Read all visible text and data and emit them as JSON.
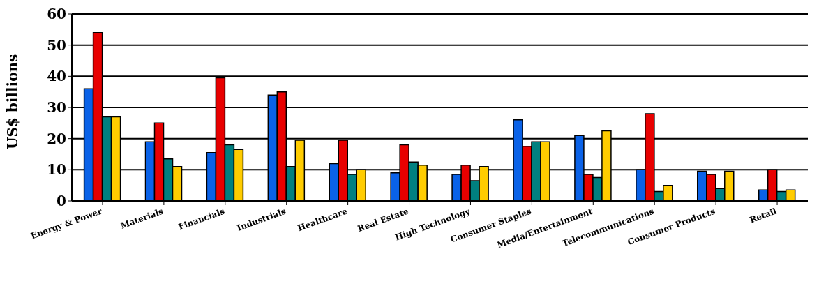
{
  "chart_data": {
    "type": "bar",
    "ylabel": "US$ billions",
    "categories": [
      "Energy & Power",
      "Materials",
      "Financials",
      "Industrials",
      "Healthcare",
      "Real Estate",
      "High Technology",
      "Consumer Staples",
      "Media/Entertainment",
      "Telecommunications",
      "Consumer Products",
      "Retail"
    ],
    "series": [
      {
        "color": "#0a62e8",
        "values": [
          36,
          19,
          15.5,
          34,
          12,
          9,
          8.5,
          26,
          21,
          10,
          9.5,
          3.5
        ]
      },
      {
        "color": "#e80000",
        "values": [
          54,
          25,
          39.5,
          35,
          19.5,
          18,
          11.5,
          17.5,
          8.5,
          28,
          8.5,
          10
        ]
      },
      {
        "color": "#008080",
        "values": [
          27,
          13.5,
          18,
          11,
          8.5,
          12.5,
          6.5,
          19,
          7.5,
          3,
          4,
          3
        ]
      },
      {
        "color": "#ffcc00",
        "values": [
          27,
          11,
          16.5,
          19.5,
          10,
          11.5,
          11,
          19,
          22.5,
          5,
          9.5,
          3.5
        ]
      }
    ],
    "ylim": [
      0,
      60
    ],
    "yticks": [
      0,
      10,
      20,
      30,
      40,
      50,
      60
    ],
    "grid": "y",
    "legend": false
  }
}
